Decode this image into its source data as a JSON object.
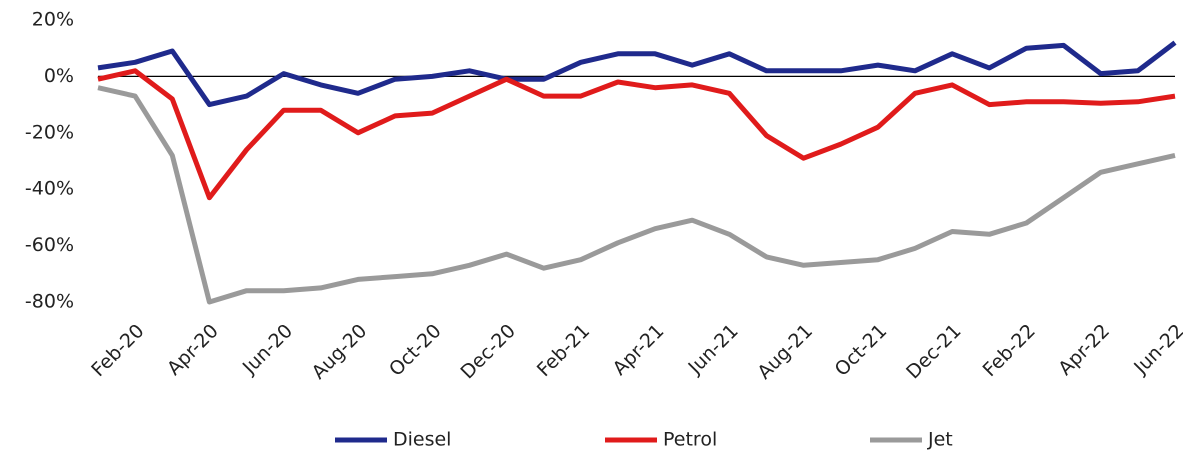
{
  "chart_data": {
    "type": "line",
    "categories": [
      null,
      "Feb-20",
      null,
      "Apr-20",
      null,
      "Jun-20",
      null,
      "Aug-20",
      null,
      "Oct-20",
      null,
      "Dec-20",
      null,
      "Feb-21",
      null,
      "Apr-21",
      null,
      "Jun-21",
      null,
      "Aug-21",
      null,
      "Oct-21",
      null,
      "Dec-21",
      null,
      "Feb-22",
      null,
      "Apr-22",
      null,
      "Jun-22"
    ],
    "series": [
      {
        "name": "Diesel",
        "color": "#1f2a8c",
        "values": [
          3,
          5,
          9,
          -10,
          -7,
          1,
          -3,
          -6,
          -1,
          0,
          2,
          -1,
          -1,
          5,
          8,
          8,
          4,
          8,
          2,
          2,
          2,
          4,
          2,
          8,
          3,
          10,
          11,
          1,
          2,
          12
        ]
      },
      {
        "name": "Petrol",
        "color": "#e01b1b",
        "values": [
          -1,
          2,
          -8,
          -43,
          -26,
          -12,
          -12,
          -20,
          -14,
          -13,
          -7,
          -1,
          -7,
          -7,
          -2,
          -4,
          -3,
          -6,
          -21,
          -29,
          -24,
          -18,
          -6,
          -3,
          -10,
          -9,
          -9,
          -9.5,
          -9,
          -7
        ]
      },
      {
        "name": "Jet",
        "color": "#9a9a9a",
        "values": [
          -4,
          -7,
          -28,
          -80,
          -76,
          -76,
          -75,
          -72,
          -71,
          -70,
          -67,
          -63,
          -68,
          -65,
          -59,
          -54,
          -51,
          -56,
          -64,
          -67,
          -66,
          -65,
          -61,
          -55,
          -56,
          -52,
          -43,
          -34,
          -31,
          -28
        ]
      }
    ],
    "ylim": [
      -80,
      20
    ],
    "yticks": [
      {
        "value": 20,
        "label": "20%"
      },
      {
        "value": 0,
        "label": "0%"
      },
      {
        "value": -20,
        "label": "-20%"
      },
      {
        "value": -40,
        "label": "-40%"
      },
      {
        "value": -60,
        "label": "-60%"
      },
      {
        "value": -80,
        "label": "-80%"
      }
    ],
    "zero_line": true,
    "legend": "bottom"
  }
}
